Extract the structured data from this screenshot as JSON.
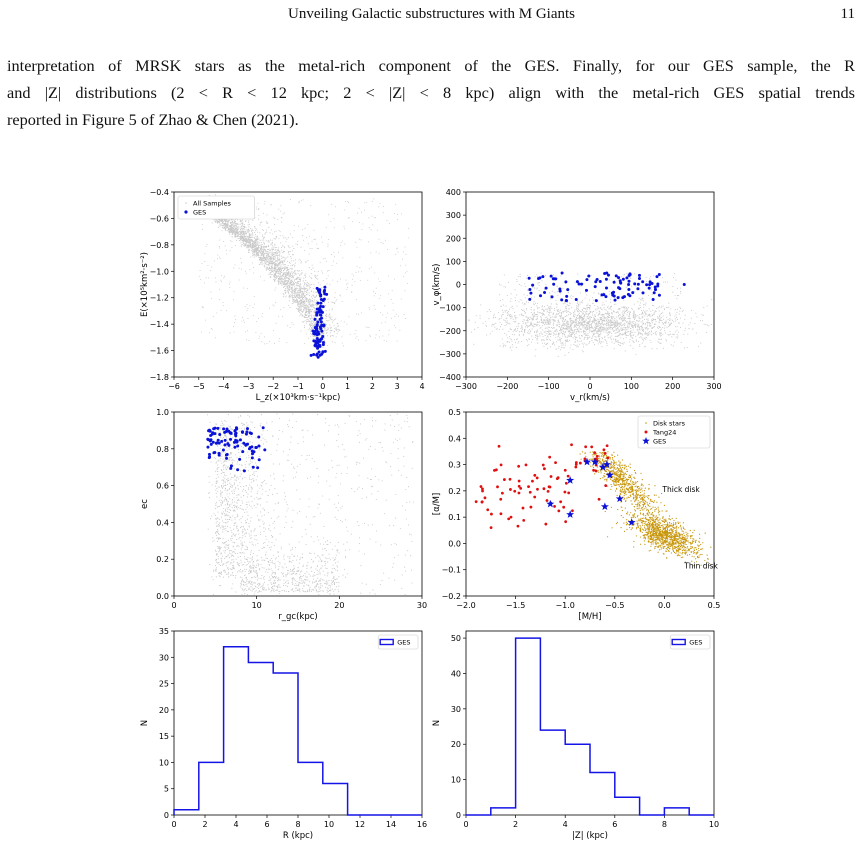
{
  "header": {
    "title": "Unveiling Galactic substructures with M Giants",
    "page_number": "11"
  },
  "paragraph": {
    "line1": "interpretation of MRSK stars as the metal-rich component of the GES. Finally, for our GES sample, the R",
    "line2": "and |Z| distributions (2 < R < 12 kpc; 2 < |Z| < 8 kpc) align with the metal-rich GES spatial trends",
    "line3": "reported in Figure 5 of Zhao & Chen (2021)."
  },
  "colors": {
    "all_samples": "#c8c8c8",
    "ges": "#0a12d8",
    "disk_stars": "#c8960a",
    "tang24": "#e01010",
    "hist_line": "#1414e6"
  },
  "chart_data": [
    {
      "type": "scatter",
      "panel": "a",
      "xlabel": "L_z(×10³km·s⁻¹kpc)",
      "ylabel": "E(×10⁵km²·s⁻²)",
      "xlim": [
        -6,
        4
      ],
      "ylim": [
        -1.8,
        -0.4
      ],
      "xticks": [
        -6,
        -5,
        -4,
        -3,
        -2,
        -1,
        0,
        1,
        2,
        3,
        4
      ],
      "yticks": [
        -1.8,
        -1.6,
        -1.4,
        -1.2,
        -1.0,
        -0.8,
        -0.6,
        -0.4
      ],
      "legend": [
        "All Samples",
        "GES"
      ],
      "legend_position": "top-left",
      "series": [
        {
          "name": "All Samples",
          "shape": "curved band from (-4.9,-0.55) to (0.3,-1.6), ~3000 points",
          "points": [
            [
              -4.8,
              -0.56
            ],
            [
              -4.4,
              -0.6
            ],
            [
              -4.0,
              -0.66
            ],
            [
              -3.6,
              -0.72
            ],
            [
              -3.2,
              -0.79
            ],
            [
              -2.8,
              -0.86
            ],
            [
              -2.4,
              -0.94
            ],
            [
              -2.0,
              -1.02
            ],
            [
              -1.6,
              -1.12
            ],
            [
              -1.2,
              -1.22
            ],
            [
              -0.8,
              -1.33
            ],
            [
              -0.4,
              -1.46
            ],
            [
              0.0,
              -1.58
            ]
          ]
        },
        {
          "name": "GES",
          "x_range": [
            -0.5,
            0.3
          ],
          "y_range": [
            -1.66,
            -1.12
          ]
        }
      ]
    },
    {
      "type": "scatter",
      "panel": "b",
      "xlabel": "v_r(km/s)",
      "ylabel": "v_φ(km/s)",
      "xlim": [
        -300,
        300
      ],
      "ylim": [
        -400,
        400
      ],
      "xticks": [
        -300,
        -200,
        -100,
        0,
        100,
        200,
        300
      ],
      "yticks": [
        -400,
        -300,
        -200,
        -100,
        0,
        100,
        200,
        300,
        400
      ],
      "series": [
        {
          "name": "All Samples",
          "center": [
            0,
            -170
          ],
          "spread": [
            110,
            60
          ]
        },
        {
          "name": "GES",
          "x_range": [
            -150,
            230
          ],
          "y_range": [
            -70,
            50
          ]
        }
      ]
    },
    {
      "type": "scatter",
      "panel": "c",
      "xlabel": "r_gc(kpc)",
      "ylabel": "ec",
      "xlim": [
        0,
        30
      ],
      "ylim": [
        0,
        1.0
      ],
      "xticks": [
        0,
        10,
        20,
        30
      ],
      "yticks": [
        0.0,
        0.2,
        0.4,
        0.6,
        0.8,
        1.0
      ],
      "series": [
        {
          "name": "All Samples",
          "x_range": [
            4,
            29
          ],
          "y_range": [
            0.0,
            1.0
          ]
        },
        {
          "name": "GES",
          "x_range": [
            4,
            11
          ],
          "y_range": [
            0.57,
            0.92
          ]
        }
      ]
    },
    {
      "type": "scatter",
      "panel": "d",
      "xlabel": "[M/H]",
      "ylabel": "[α/M]",
      "xlim": [
        -2.0,
        0.5
      ],
      "ylim": [
        -0.2,
        0.5
      ],
      "xticks": [
        -2.0,
        -1.5,
        -1.0,
        -0.5,
        0.0,
        0.5
      ],
      "yticks": [
        -0.2,
        -0.1,
        0.0,
        0.1,
        0.2,
        0.3,
        0.4,
        0.5
      ],
      "legend": [
        "Disk stars",
        "Tang24",
        "GES"
      ],
      "legend_position": "top-right",
      "annotations": [
        "Thick disk",
        "Thin disk"
      ],
      "series": [
        {
          "name": "Disk stars",
          "regions": [
            {
              "center": [
                -0.45,
                0.25
              ]
            },
            {
              "center": [
                0.0,
                0.03
              ]
            }
          ]
        },
        {
          "name": "Tang24",
          "x_range": [
            -1.95,
            -0.55
          ],
          "y_range": [
            0.0,
            0.38
          ]
        },
        {
          "name": "GES",
          "points": [
            [
              -0.78,
              0.31
            ],
            [
              -0.7,
              0.31
            ],
            [
              -0.62,
              0.29
            ],
            [
              -0.58,
              0.3
            ],
            [
              -0.55,
              0.26
            ],
            [
              -0.95,
              0.24
            ],
            [
              -0.45,
              0.17
            ],
            [
              -0.6,
              0.14
            ],
            [
              -1.15,
              0.15
            ],
            [
              -0.95,
              0.11
            ],
            [
              -0.33,
              0.08
            ]
          ]
        }
      ]
    },
    {
      "type": "bar",
      "style": "step",
      "panel": "e",
      "xlabel": "R (kpc)",
      "ylabel": "N",
      "xlim": [
        0,
        16
      ],
      "ylim": [
        0,
        35
      ],
      "xticks": [
        0,
        2,
        4,
        6,
        8,
        10,
        12,
        14,
        16
      ],
      "yticks": [
        0,
        5,
        10,
        15,
        20,
        25,
        30,
        35
      ],
      "legend": [
        "GES"
      ],
      "legend_position": "top-right",
      "bin_edges": [
        0,
        1.6,
        3.2,
        4.8,
        6.4,
        8.0,
        9.6,
        11.2,
        12.8,
        14.4,
        16
      ],
      "values": [
        1,
        10,
        32,
        29,
        27,
        10,
        6,
        0,
        0,
        0
      ]
    },
    {
      "type": "bar",
      "style": "step",
      "panel": "f",
      "xlabel": "|Z| (kpc)",
      "ylabel": "N",
      "xlim": [
        0,
        10
      ],
      "ylim": [
        0,
        52
      ],
      "xticks": [
        0,
        2,
        4,
        6,
        8,
        10
      ],
      "yticks": [
        0,
        10,
        20,
        30,
        40,
        50
      ],
      "legend": [
        "GES"
      ],
      "legend_position": "top-right",
      "bin_edges": [
        0,
        1,
        2,
        3,
        4,
        5,
        6,
        7,
        8,
        9,
        10
      ],
      "values": [
        0,
        2,
        50,
        24,
        20,
        12,
        5,
        0,
        2,
        0
      ]
    }
  ]
}
